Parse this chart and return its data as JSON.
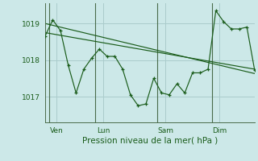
{
  "xlabel": "Pression niveau de la mer( hPa )",
  "bg_color": "#cce8e8",
  "grid_color": "#aacccc",
  "line_color": "#1a5c1a",
  "yticks": [
    1017,
    1018,
    1019
  ],
  "ylim": [
    1016.3,
    1019.55
  ],
  "xlim": [
    0,
    27
  ],
  "day_labels": [
    "Ven",
    "Lun",
    "Sam",
    "Dim"
  ],
  "day_positions": [
    1.5,
    7.5,
    15.5,
    22.5
  ],
  "vline_positions": [
    0.5,
    6.5,
    14.5,
    21.5
  ],
  "trend1_x": [
    0,
    27
  ],
  "trend1_y": [
    1019.0,
    1017.63
  ],
  "trend2_x": [
    0,
    27
  ],
  "trend2_y": [
    1018.75,
    1017.75
  ],
  "main_x": [
    0,
    1,
    2,
    3,
    4,
    5,
    6,
    7,
    8,
    9,
    10,
    11,
    12,
    13,
    14,
    15,
    16,
    17,
    18,
    19,
    20,
    21,
    22,
    23,
    24,
    25,
    26,
    27
  ],
  "main_y": [
    1018.65,
    1019.1,
    1018.8,
    1017.85,
    1017.1,
    1017.75,
    1018.05,
    1018.3,
    1018.1,
    1018.1,
    1017.75,
    1017.05,
    1016.75,
    1016.8,
    1017.5,
    1017.1,
    1017.05,
    1017.35,
    1017.1,
    1017.65,
    1017.65,
    1017.75,
    1019.35,
    1019.05,
    1018.85,
    1018.85,
    1018.9,
    1017.72
  ]
}
